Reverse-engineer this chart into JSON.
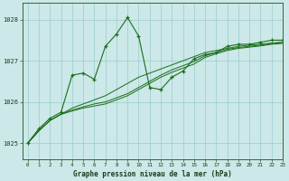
{
  "title": "Graphe pression niveau de la mer (hPa)",
  "bg_color": "#cce8e8",
  "grid_color": "#99cccc",
  "line_color": "#1a6e1a",
  "xlim": [
    -0.5,
    23
  ],
  "ylim": [
    1024.6,
    1028.4
  ],
  "yticks": [
    1025,
    1026,
    1027,
    1028
  ],
  "xticks": [
    0,
    1,
    2,
    3,
    4,
    5,
    6,
    7,
    8,
    9,
    10,
    11,
    12,
    13,
    14,
    15,
    16,
    17,
    18,
    19,
    20,
    21,
    22,
    23
  ],
  "volatile": [
    1025.0,
    1025.35,
    1025.6,
    1025.75,
    1026.65,
    1026.7,
    1026.55,
    1027.35,
    1027.65,
    1028.05,
    1027.6,
    1026.35,
    1026.3,
    1026.6,
    1026.75,
    1027.05,
    1027.15,
    1027.2,
    1027.35,
    1027.4,
    1027.4,
    1027.45,
    1027.5,
    1027.5
  ],
  "smooth1": [
    1025.0,
    1025.3,
    1025.55,
    1025.7,
    1025.85,
    1025.95,
    1026.05,
    1026.15,
    1026.3,
    1026.45,
    1026.6,
    1026.7,
    1026.8,
    1026.9,
    1027.0,
    1027.1,
    1027.2,
    1027.25,
    1027.3,
    1027.35,
    1027.38,
    1027.4,
    1027.43,
    1027.45
  ],
  "smooth2": [
    1025.0,
    1025.3,
    1025.55,
    1025.7,
    1025.8,
    1025.88,
    1025.95,
    1026.0,
    1026.1,
    1026.2,
    1026.35,
    1026.5,
    1026.65,
    1026.78,
    1026.88,
    1026.98,
    1027.12,
    1027.2,
    1027.28,
    1027.32,
    1027.35,
    1027.38,
    1027.42,
    1027.45
  ],
  "smooth3": [
    1025.0,
    1025.3,
    1025.55,
    1025.7,
    1025.78,
    1025.85,
    1025.9,
    1025.95,
    1026.05,
    1026.15,
    1026.3,
    1026.45,
    1026.6,
    1026.72,
    1026.82,
    1026.92,
    1027.08,
    1027.17,
    1027.25,
    1027.3,
    1027.33,
    1027.36,
    1027.4,
    1027.42
  ]
}
